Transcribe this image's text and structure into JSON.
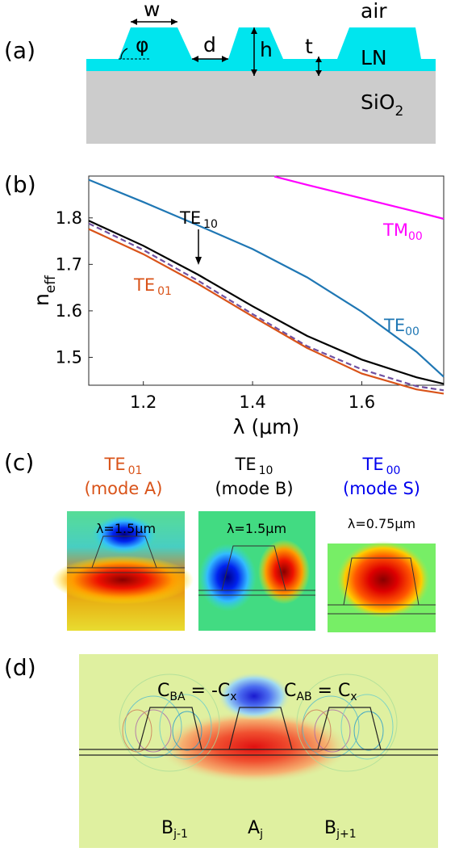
{
  "panel_a": {
    "label": "(a)",
    "w": "w",
    "phi": "φ",
    "d": "d",
    "h": "h",
    "t": "t",
    "air": "air",
    "ln": "LN",
    "sio2_base": "SiO",
    "sio2_sub": "2"
  },
  "panel_b": {
    "label": "(b)",
    "ylabel_main": "n",
    "ylabel_sub": "eff",
    "xlabel": "λ (μm)",
    "te10": "TE",
    "te10_sub": "10",
    "tm00": "TM",
    "tm00_sub": "00",
    "te01": "TE",
    "te01_sub": "01",
    "te00": "TE",
    "te00_sub": "00"
  },
  "chart_data": {
    "type": "line",
    "xlabel": "λ (μm)",
    "ylabel": "n_eff",
    "xlim": [
      1.1,
      1.75
    ],
    "ylim": [
      1.44,
      1.89
    ],
    "xticks": [
      "1.2",
      "1.4",
      "1.6"
    ],
    "yticks": [
      "1.5",
      "1.6",
      "1.7",
      "1.8"
    ],
    "grid": false,
    "series": [
      {
        "name": "TM00",
        "color": "#ff00ff",
        "style": "solid",
        "x": [
          1.44,
          1.5,
          1.6,
          1.7,
          1.75
        ],
        "y": [
          1.889,
          1.871,
          1.842,
          1.813,
          1.798
        ]
      },
      {
        "name": "TE00",
        "color": "#1f77b4",
        "style": "solid",
        "x": [
          1.1,
          1.2,
          1.3,
          1.4,
          1.5,
          1.6,
          1.7,
          1.75
        ],
        "y": [
          1.882,
          1.834,
          1.784,
          1.733,
          1.672,
          1.598,
          1.512,
          1.458
        ]
      },
      {
        "name": "TE10",
        "color": "#000000",
        "style": "solid",
        "x": [
          1.1,
          1.2,
          1.3,
          1.4,
          1.5,
          1.6,
          1.7,
          1.75
        ],
        "y": [
          1.794,
          1.74,
          1.678,
          1.61,
          1.546,
          1.495,
          1.457,
          1.443
        ]
      },
      {
        "name": "",
        "color": "#7050a0",
        "style": "dashed",
        "x": [
          1.1,
          1.2,
          1.3,
          1.4,
          1.5,
          1.6,
          1.7,
          1.75
        ],
        "y": [
          1.788,
          1.731,
          1.665,
          1.593,
          1.524,
          1.474,
          1.438,
          1.429
        ]
      },
      {
        "name": "TE01",
        "color": "#d95319",
        "style": "solid",
        "x": [
          1.1,
          1.2,
          1.3,
          1.4,
          1.5,
          1.6,
          1.7,
          1.75
        ],
        "y": [
          1.776,
          1.722,
          1.658,
          1.588,
          1.52,
          1.465,
          1.431,
          1.422
        ]
      }
    ]
  },
  "panel_c": {
    "label": "(c)",
    "mode_a_title": "TE",
    "mode_a_sub": "01",
    "mode_a_name": "(mode A)",
    "mode_a_lambda": "λ=1.5μm",
    "mode_a_color": "#d95319",
    "mode_b_title": "TE",
    "mode_b_sub": "10",
    "mode_b_name": "(mode B)",
    "mode_b_lambda": "λ=1.5μm",
    "mode_b_color": "#000000",
    "mode_s_title": "TE",
    "mode_s_sub": "00",
    "mode_s_name": "(mode S)",
    "mode_s_lambda": "λ=0.75μm",
    "mode_s_color": "#0000ee"
  },
  "panel_d": {
    "label": "(d)",
    "cba": "C",
    "cba_sub": "BA",
    "cba_eq": " = -C",
    "cba_x": "x",
    "cab": "C",
    "cab_sub": "AB",
    "cab_eq": " = C",
    "cab_x": "x",
    "b_left": "B",
    "b_left_sub": "j-1",
    "a_mid": "A",
    "a_mid_sub": "j",
    "b_right": "B",
    "b_right_sub": "j+1"
  }
}
